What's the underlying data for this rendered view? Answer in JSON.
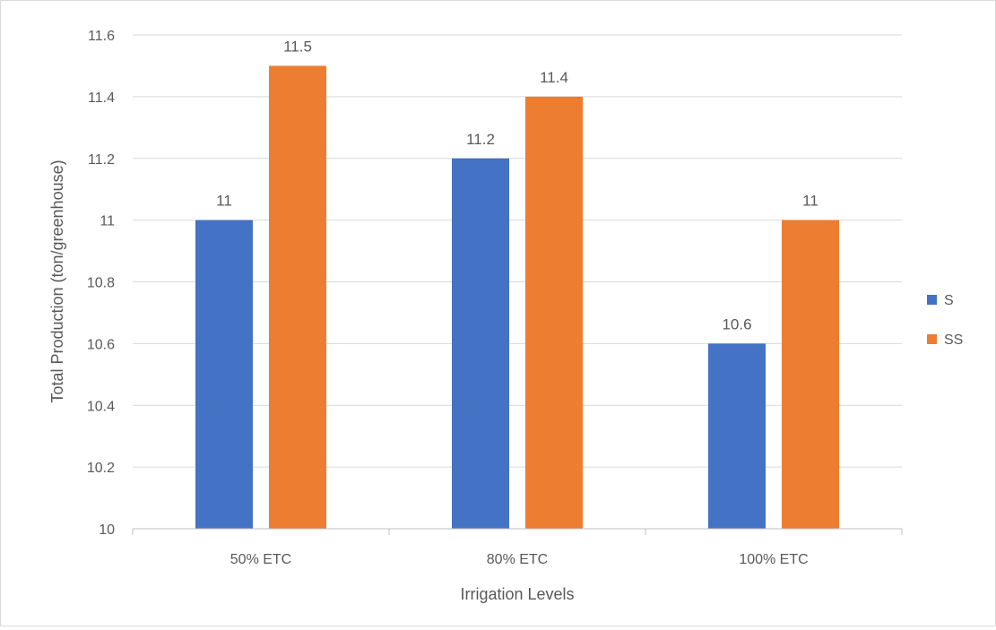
{
  "chart_data": {
    "type": "bar",
    "title": "",
    "xlabel": "Irrigation Levels",
    "ylabel": "Total Production  (ton/greenhouse)",
    "categories": [
      "50% ETC",
      "80% ETC",
      "100% ETC"
    ],
    "series": [
      {
        "name": "S",
        "color": "#4472c4",
        "values": [
          11,
          11.2,
          10.6
        ],
        "labels": [
          "11",
          "11.2",
          "10.6"
        ]
      },
      {
        "name": "SS",
        "color": "#ed7d31",
        "values": [
          11.5,
          11.4,
          11
        ],
        "labels": [
          "11.5",
          "11.4",
          "11"
        ]
      }
    ],
    "ylim": [
      10,
      11.6
    ],
    "yticks": [
      10,
      10.2,
      10.4,
      10.6,
      10.8,
      11,
      11.2,
      11.4,
      11.6
    ],
    "ytick_labels": [
      "10",
      "10.2",
      "10.4",
      "10.6",
      "10.8",
      "11",
      "11.2",
      "11.4",
      "11.6"
    ],
    "grid": true,
    "legend_position": "right"
  }
}
